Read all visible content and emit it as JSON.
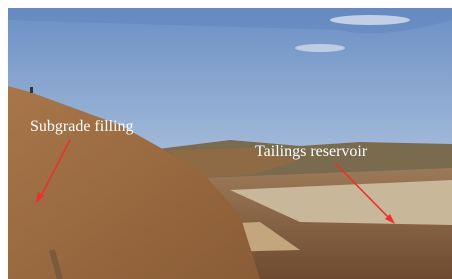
{
  "annotations": [
    {
      "label": "Subgrade filling"
    },
    {
      "label": "Tailings reservoir"
    }
  ]
}
